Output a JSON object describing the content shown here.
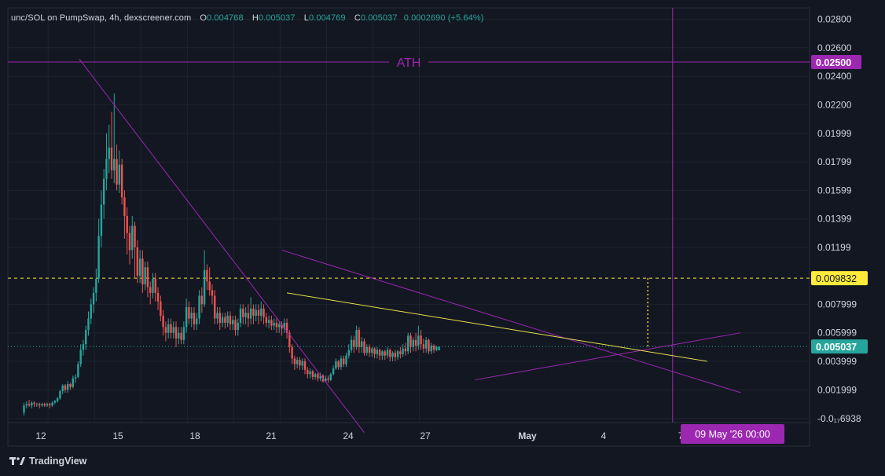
{
  "header": {
    "symbol": "unc/SOL on PumpSwap, 4h, dexscreener.com",
    "o_label": "O",
    "o_value": "0.004768",
    "h_label": "H",
    "h_value": "0.005037",
    "l_label": "L",
    "l_value": "0.004769",
    "c_label": "C",
    "c_value": "0.005037",
    "change": "0.0002690 (+5.64%)"
  },
  "brand": {
    "label": "TradingView",
    "icon": "tradingview-logo-icon"
  },
  "colors": {
    "background": "#131722",
    "up": "#26a69a",
    "down": "#ef5350",
    "drawing": "#9c27b0",
    "trend": "#e6e04a",
    "level": "#ffeb3b"
  },
  "chart_data": {
    "type": "candlestick",
    "timeframe": "4h",
    "x_ticks": [
      "12",
      "15",
      "18",
      "21",
      "24",
      "27",
      "May",
      "4",
      "7"
    ],
    "y_ticks": [
      "0.02800",
      "0.02600",
      "0.02400",
      "0.02200",
      "0.01999",
      "0.01799",
      "0.01599",
      "0.01399",
      "0.01199",
      "0.007999",
      "0.005999",
      "0.003999",
      "0.001999",
      "-0.0₁₇6938"
    ],
    "ylim": [
      -0.0003,
      0.0288
    ],
    "ath": {
      "label": "ATH",
      "value": 0.025,
      "value_label": "0.02500"
    },
    "level": {
      "value": 0.009832,
      "label": "0.009832"
    },
    "current": {
      "value": 0.005037,
      "label": "0.005037"
    },
    "crosshair": {
      "label": "09 May '26   00:00"
    },
    "candles": [
      [
        0.0004,
        0.0009,
        0.0002,
        0.0011
      ],
      [
        0.0009,
        0.001,
        0.0007,
        0.0012
      ],
      [
        0.001,
        0.0009,
        0.0008,
        0.0013
      ],
      [
        0.0009,
        0.0011,
        0.0007,
        0.0012
      ],
      [
        0.0011,
        0.001,
        0.0008,
        0.0012
      ],
      [
        0.001,
        0.001,
        0.0008,
        0.0011
      ],
      [
        0.001,
        0.0009,
        0.0007,
        0.0011
      ],
      [
        0.0009,
        0.001,
        0.0008,
        0.0011
      ],
      [
        0.001,
        0.0009,
        0.0008,
        0.0011
      ],
      [
        0.0009,
        0.001,
        0.0008,
        0.0011
      ],
      [
        0.001,
        0.0009,
        0.0007,
        0.0011
      ],
      [
        0.0009,
        0.0011,
        0.0008,
        0.0012
      ],
      [
        0.0011,
        0.0012,
        0.001,
        0.0013
      ],
      [
        0.0012,
        0.0014,
        0.0011,
        0.0015
      ],
      [
        0.0014,
        0.0019,
        0.0013,
        0.002
      ],
      [
        0.0019,
        0.0023,
        0.0017,
        0.0024
      ],
      [
        0.0023,
        0.002,
        0.0018,
        0.0024
      ],
      [
        0.002,
        0.0024,
        0.0018,
        0.0026
      ],
      [
        0.0024,
        0.0022,
        0.002,
        0.0025
      ],
      [
        0.0022,
        0.0028,
        0.0021,
        0.003
      ],
      [
        0.0028,
        0.0029,
        0.0025,
        0.0031
      ],
      [
        0.0029,
        0.0038,
        0.0028,
        0.004
      ],
      [
        0.0038,
        0.0048,
        0.0036,
        0.0052
      ],
      [
        0.0048,
        0.0052,
        0.0044,
        0.0055
      ],
      [
        0.0052,
        0.0062,
        0.0048,
        0.0065
      ],
      [
        0.0062,
        0.007,
        0.0058,
        0.0075
      ],
      [
        0.007,
        0.008,
        0.0066,
        0.0084
      ],
      [
        0.008,
        0.0088,
        0.0074,
        0.0092
      ],
      [
        0.0088,
        0.0098,
        0.0082,
        0.0105
      ],
      [
        0.0098,
        0.0128,
        0.0095,
        0.014
      ],
      [
        0.0128,
        0.015,
        0.012,
        0.016
      ],
      [
        0.015,
        0.0168,
        0.014,
        0.0175
      ],
      [
        0.0168,
        0.0182,
        0.016,
        0.02
      ],
      [
        0.0182,
        0.019,
        0.0172,
        0.0206
      ],
      [
        0.019,
        0.0174,
        0.0168,
        0.0215
      ],
      [
        0.0174,
        0.0182,
        0.0165,
        0.0228
      ],
      [
        0.0182,
        0.0164,
        0.016,
        0.0192
      ],
      [
        0.0164,
        0.0178,
        0.0158,
        0.0188
      ],
      [
        0.0178,
        0.0155,
        0.015,
        0.0182
      ],
      [
        0.0155,
        0.0142,
        0.0126,
        0.016
      ],
      [
        0.0142,
        0.013,
        0.0115,
        0.0148
      ],
      [
        0.013,
        0.0118,
        0.0108,
        0.0135
      ],
      [
        0.0118,
        0.0135,
        0.0112,
        0.0142
      ],
      [
        0.0135,
        0.012,
        0.0098,
        0.0138
      ],
      [
        0.012,
        0.01,
        0.0095,
        0.0125
      ],
      [
        0.01,
        0.0112,
        0.0095,
        0.0118
      ],
      [
        0.0112,
        0.0094,
        0.0088,
        0.0118
      ],
      [
        0.0094,
        0.0106,
        0.009,
        0.011
      ],
      [
        0.0106,
        0.0092,
        0.0085,
        0.011
      ],
      [
        0.0092,
        0.0088,
        0.008,
        0.0096
      ],
      [
        0.0088,
        0.0098,
        0.0084,
        0.0102
      ],
      [
        0.0098,
        0.0088,
        0.0082,
        0.0102
      ],
      [
        0.0088,
        0.0082,
        0.0076,
        0.0092
      ],
      [
        0.0082,
        0.0072,
        0.0068,
        0.0086
      ],
      [
        0.0072,
        0.0064,
        0.0058,
        0.0076
      ],
      [
        0.0064,
        0.006,
        0.0054,
        0.0068
      ],
      [
        0.006,
        0.0066,
        0.0056,
        0.007
      ],
      [
        0.0066,
        0.006,
        0.0056,
        0.007
      ],
      [
        0.006,
        0.0064,
        0.0056,
        0.0068
      ],
      [
        0.0064,
        0.0056,
        0.005,
        0.0068
      ],
      [
        0.0056,
        0.006,
        0.0052,
        0.0064
      ],
      [
        0.006,
        0.0055,
        0.0052,
        0.0064
      ],
      [
        0.0055,
        0.0064,
        0.0052,
        0.0068
      ],
      [
        0.0064,
        0.0078,
        0.006,
        0.0084
      ],
      [
        0.0078,
        0.007,
        0.0066,
        0.0082
      ],
      [
        0.007,
        0.0074,
        0.0064,
        0.0078
      ],
      [
        0.0074,
        0.0066,
        0.0062,
        0.0078
      ],
      [
        0.0066,
        0.007,
        0.0062,
        0.0074
      ],
      [
        0.007,
        0.0086,
        0.0066,
        0.009
      ],
      [
        0.0086,
        0.008,
        0.0074,
        0.0092
      ],
      [
        0.008,
        0.0104,
        0.0078,
        0.0118
      ],
      [
        0.0104,
        0.0096,
        0.009,
        0.0108
      ],
      [
        0.0096,
        0.009,
        0.0086,
        0.0106
      ],
      [
        0.009,
        0.0086,
        0.008,
        0.0094
      ],
      [
        0.0086,
        0.007,
        0.0066,
        0.009
      ],
      [
        0.007,
        0.0074,
        0.0066,
        0.0078
      ],
      [
        0.0074,
        0.0067,
        0.0062,
        0.0078
      ],
      [
        0.0067,
        0.0071,
        0.0064,
        0.0074
      ],
      [
        0.0071,
        0.0067,
        0.0063,
        0.0074
      ],
      [
        0.0067,
        0.0072,
        0.0064,
        0.0075
      ],
      [
        0.0072,
        0.0066,
        0.0062,
        0.0075
      ],
      [
        0.0066,
        0.0069,
        0.0062,
        0.0072
      ],
      [
        0.0069,
        0.0062,
        0.0058,
        0.0072
      ],
      [
        0.0062,
        0.0067,
        0.0058,
        0.007
      ],
      [
        0.0067,
        0.0077,
        0.0064,
        0.008
      ],
      [
        0.0077,
        0.0071,
        0.0066,
        0.008
      ],
      [
        0.0071,
        0.0074,
        0.0066,
        0.0078
      ],
      [
        0.0074,
        0.007,
        0.0064,
        0.008
      ],
      [
        0.007,
        0.0077,
        0.0066,
        0.0085
      ],
      [
        0.0077,
        0.0072,
        0.0066,
        0.008
      ],
      [
        0.0072,
        0.0076,
        0.0068,
        0.008
      ],
      [
        0.0076,
        0.0072,
        0.0066,
        0.008
      ],
      [
        0.0072,
        0.0077,
        0.0068,
        0.0082
      ],
      [
        0.0077,
        0.0071,
        0.0066,
        0.008
      ],
      [
        0.0071,
        0.0067,
        0.0064,
        0.0074
      ],
      [
        0.0067,
        0.0069,
        0.0063,
        0.0072
      ],
      [
        0.0069,
        0.0065,
        0.0062,
        0.0072
      ],
      [
        0.0065,
        0.0067,
        0.0062,
        0.007
      ],
      [
        0.0067,
        0.0064,
        0.006,
        0.007
      ],
      [
        0.0064,
        0.0066,
        0.006,
        0.0068
      ],
      [
        0.0066,
        0.0063,
        0.0058,
        0.0068
      ],
      [
        0.0063,
        0.0067,
        0.006,
        0.007
      ],
      [
        0.0067,
        0.006,
        0.0056,
        0.007
      ],
      [
        0.006,
        0.005,
        0.0046,
        0.0062
      ],
      [
        0.005,
        0.0042,
        0.0038,
        0.0052
      ],
      [
        0.0042,
        0.0038,
        0.0034,
        0.0044
      ],
      [
        0.0038,
        0.0041,
        0.0035,
        0.0043
      ],
      [
        0.0041,
        0.0037,
        0.0034,
        0.0043
      ],
      [
        0.0037,
        0.004,
        0.0034,
        0.0042
      ],
      [
        0.004,
        0.0034,
        0.0031,
        0.0042
      ],
      [
        0.0034,
        0.0031,
        0.0028,
        0.0036
      ],
      [
        0.0031,
        0.0033,
        0.0028,
        0.0035
      ],
      [
        0.0033,
        0.0029,
        0.0027,
        0.0034
      ],
      [
        0.0029,
        0.0031,
        0.0027,
        0.0032
      ],
      [
        0.0031,
        0.0028,
        0.0026,
        0.0032
      ],
      [
        0.0028,
        0.003,
        0.0026,
        0.0032
      ],
      [
        0.003,
        0.0026,
        0.0025,
        0.0031
      ],
      [
        0.0026,
        0.0028,
        0.0025,
        0.003
      ],
      [
        0.0028,
        0.0027,
        0.0025,
        0.003
      ],
      [
        0.0027,
        0.0031,
        0.0026,
        0.0032
      ],
      [
        0.0031,
        0.0035,
        0.003,
        0.0037
      ],
      [
        0.0035,
        0.004,
        0.0034,
        0.0042
      ],
      [
        0.004,
        0.0036,
        0.0034,
        0.0041
      ],
      [
        0.0036,
        0.0042,
        0.0034,
        0.0044
      ],
      [
        0.0042,
        0.0038,
        0.0036,
        0.0044
      ],
      [
        0.0038,
        0.0044,
        0.0036,
        0.0046
      ],
      [
        0.0044,
        0.0048,
        0.0042,
        0.0052
      ],
      [
        0.0048,
        0.0055,
        0.0046,
        0.0058
      ],
      [
        0.0055,
        0.005,
        0.0046,
        0.0058
      ],
      [
        0.005,
        0.0062,
        0.0048,
        0.0065
      ],
      [
        0.0062,
        0.005,
        0.0046,
        0.0064
      ],
      [
        0.005,
        0.0054,
        0.0046,
        0.0057
      ],
      [
        0.0054,
        0.0046,
        0.0044,
        0.0056
      ],
      [
        0.0046,
        0.005,
        0.0044,
        0.0052
      ],
      [
        0.005,
        0.0046,
        0.0043,
        0.0052
      ],
      [
        0.0046,
        0.0049,
        0.0043,
        0.005
      ],
      [
        0.0049,
        0.0045,
        0.0042,
        0.005
      ],
      [
        0.0045,
        0.0048,
        0.0042,
        0.005
      ],
      [
        0.0048,
        0.0044,
        0.0041,
        0.0049
      ],
      [
        0.0044,
        0.0047,
        0.0041,
        0.0048
      ],
      [
        0.0047,
        0.0044,
        0.0041,
        0.0048
      ],
      [
        0.0044,
        0.0048,
        0.0042,
        0.005
      ],
      [
        0.0048,
        0.0043,
        0.004,
        0.0049
      ],
      [
        0.0043,
        0.0046,
        0.004,
        0.0047
      ],
      [
        0.0046,
        0.0043,
        0.004,
        0.0048
      ],
      [
        0.0043,
        0.0047,
        0.0041,
        0.0048
      ],
      [
        0.0047,
        0.0045,
        0.0042,
        0.005
      ],
      [
        0.0045,
        0.0049,
        0.0043,
        0.0052
      ],
      [
        0.0049,
        0.0047,
        0.0044,
        0.0053
      ],
      [
        0.0047,
        0.0058,
        0.0045,
        0.006
      ],
      [
        0.0058,
        0.005,
        0.0046,
        0.006
      ],
      [
        0.005,
        0.0055,
        0.0047,
        0.0057
      ],
      [
        0.0055,
        0.0051,
        0.0047,
        0.006
      ],
      [
        0.0051,
        0.0058,
        0.0048,
        0.0065
      ],
      [
        0.0058,
        0.0052,
        0.0048,
        0.0062
      ],
      [
        0.0052,
        0.0049,
        0.0046,
        0.0056
      ],
      [
        0.0049,
        0.0055,
        0.0046,
        0.0057
      ],
      [
        0.0055,
        0.0047,
        0.0045,
        0.0056
      ],
      [
        0.0047,
        0.0051,
        0.0045,
        0.0053
      ],
      [
        0.0051,
        0.0048,
        0.0046,
        0.0052
      ],
      [
        0.0048,
        0.005,
        0.0047,
        0.0051
      ],
      [
        0.004768,
        0.005037,
        0.004769,
        0.005037
      ]
    ],
    "drawings": [
      {
        "name": "downtrend-line",
        "color": "#9c27b0",
        "from": [
          21.5,
          0.0252
        ],
        "to": [
          132,
          -0.001
        ]
      },
      {
        "name": "wedge-upper-line",
        "color": "#9c27b0",
        "from": [
          100,
          0.0118
        ],
        "to": [
          278,
          0.0018
        ]
      },
      {
        "name": "wedge-lower-line",
        "color": "#9c27b0",
        "from": [
          175,
          0.0027
        ],
        "to": [
          278,
          0.006
        ]
      },
      {
        "name": "yellow-trend-line",
        "color": "#e6e04a",
        "from": [
          102,
          0.0088
        ],
        "to": [
          265,
          0.004
        ]
      }
    ],
    "crosshair_index": 251
  }
}
